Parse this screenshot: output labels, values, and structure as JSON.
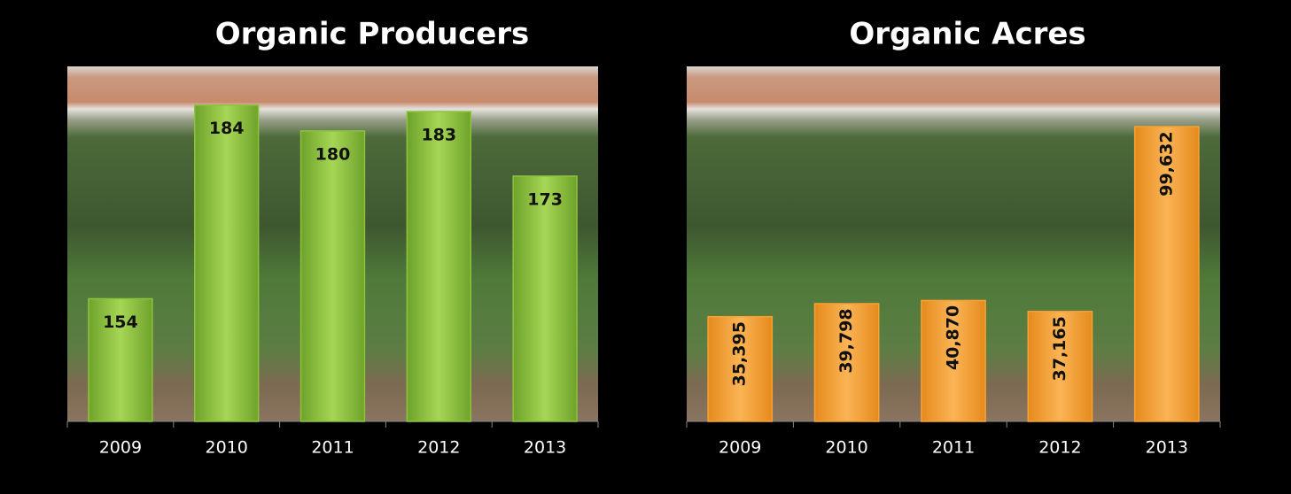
{
  "chart_data": [
    {
      "type": "bar",
      "title": "Organic Producers",
      "categories": [
        "2009",
        "2010",
        "2011",
        "2012",
        "2013"
      ],
      "values": [
        154,
        184,
        180,
        183,
        173
      ],
      "color": "#8cc43c",
      "ylim": [
        135,
        190
      ],
      "label_rotation": 0
    },
    {
      "type": "bar",
      "title": "Organic Acres",
      "categories": [
        "2009",
        "2010",
        "2011",
        "2012",
        "2013"
      ],
      "values": [
        35395,
        39798,
        40870,
        37165,
        99632
      ],
      "value_labels": [
        "35,395",
        "39,798",
        "40,870",
        "37,165",
        "99,632"
      ],
      "color": "#f7a232",
      "ylim": [
        0,
        120000
      ],
      "label_rotation": -90
    }
  ]
}
